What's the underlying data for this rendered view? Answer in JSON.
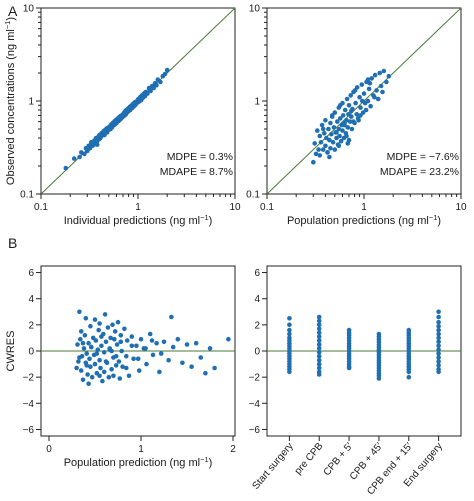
{
  "panel_labels": [
    "A",
    "B"
  ],
  "colors": {
    "points": "#1f6fb2",
    "identity_line": "#4a7a3a",
    "zero_line": "#4a7a3a",
    "axis": "#222222"
  },
  "chart_data": [
    {
      "id": "ipred",
      "type": "scatter",
      "scale": "log",
      "xlim": [
        0.1,
        10
      ],
      "ylim": [
        0.1,
        10
      ],
      "xticks": [
        "0.1",
        "1",
        "10"
      ],
      "yticks": [
        "0.1",
        "1",
        "10"
      ],
      "xlabel": "Individual predictions (ng ml",
      "ylabel": "Observed concentrations (ng ml",
      "unit_exp": "−1",
      "identity_line": true,
      "annotations": [
        "MDPE = 0.3%",
        "MDAPE = 8.7%"
      ],
      "points_x": [
        0.18,
        0.22,
        0.25,
        0.26,
        0.28,
        0.29,
        0.3,
        0.31,
        0.32,
        0.33,
        0.34,
        0.35,
        0.35,
        0.36,
        0.37,
        0.37,
        0.38,
        0.39,
        0.4,
        0.4,
        0.41,
        0.42,
        0.42,
        0.43,
        0.44,
        0.45,
        0.45,
        0.46,
        0.47,
        0.48,
        0.48,
        0.49,
        0.5,
        0.5,
        0.51,
        0.52,
        0.53,
        0.54,
        0.55,
        0.55,
        0.56,
        0.57,
        0.58,
        0.59,
        0.6,
        0.6,
        0.61,
        0.62,
        0.63,
        0.64,
        0.65,
        0.66,
        0.67,
        0.68,
        0.69,
        0.7,
        0.71,
        0.72,
        0.73,
        0.74,
        0.75,
        0.76,
        0.78,
        0.79,
        0.8,
        0.82,
        0.84,
        0.85,
        0.87,
        0.89,
        0.9,
        0.92,
        0.94,
        0.95,
        0.97,
        1.0,
        1.02,
        1.05,
        1.08,
        1.1,
        1.12,
        1.15,
        1.18,
        1.2,
        1.25,
        1.3,
        1.35,
        1.4,
        1.45,
        1.5,
        1.55,
        1.6,
        1.7,
        1.8,
        1.9,
        2.0,
        0.33,
        0.38,
        0.44,
        0.52,
        0.58,
        0.66,
        0.74,
        0.83,
        0.93,
        1.04,
        1.16,
        1.3
      ],
      "points_y": [
        0.19,
        0.24,
        0.25,
        0.28,
        0.27,
        0.31,
        0.29,
        0.33,
        0.31,
        0.35,
        0.33,
        0.37,
        0.34,
        0.38,
        0.36,
        0.4,
        0.37,
        0.41,
        0.39,
        0.43,
        0.4,
        0.45,
        0.42,
        0.44,
        0.47,
        0.43,
        0.48,
        0.45,
        0.5,
        0.46,
        0.51,
        0.48,
        0.52,
        0.49,
        0.53,
        0.5,
        0.56,
        0.52,
        0.58,
        0.54,
        0.55,
        0.6,
        0.56,
        0.62,
        0.58,
        0.63,
        0.6,
        0.65,
        0.61,
        0.67,
        0.63,
        0.69,
        0.65,
        0.7,
        0.67,
        0.72,
        0.69,
        0.75,
        0.7,
        0.78,
        0.72,
        0.8,
        0.76,
        0.83,
        0.78,
        0.86,
        0.82,
        0.89,
        0.84,
        0.93,
        0.87,
        0.96,
        0.91,
        0.98,
        0.95,
        1.04,
        0.98,
        1.1,
        1.02,
        1.15,
        1.08,
        1.2,
        1.13,
        1.25,
        1.2,
        1.35,
        1.28,
        1.45,
        1.38,
        1.55,
        1.48,
        1.7,
        1.6,
        1.85,
        1.95,
        2.15,
        0.36,
        0.34,
        0.47,
        0.5,
        0.61,
        0.64,
        0.77,
        0.8,
        0.9,
        1.07,
        1.12,
        1.38
      ]
    },
    {
      "id": "pred",
      "type": "scatter",
      "scale": "log",
      "xlim": [
        0.1,
        10
      ],
      "ylim": [
        0.1,
        10
      ],
      "xticks": [
        "0.1",
        "1",
        "10"
      ],
      "yticks": [
        "0.1",
        "1",
        "10"
      ],
      "xlabel": "Population predictions (ng ml",
      "unit_exp": "−1",
      "identity_line": true,
      "annotations": [
        "MDPE = −7.6%",
        "MDAPE = 23.2%"
      ],
      "points_x": [
        0.3,
        0.31,
        0.32,
        0.33,
        0.34,
        0.35,
        0.35,
        0.36,
        0.37,
        0.38,
        0.39,
        0.4,
        0.4,
        0.41,
        0.42,
        0.43,
        0.44,
        0.45,
        0.45,
        0.46,
        0.47,
        0.48,
        0.49,
        0.5,
        0.5,
        0.51,
        0.52,
        0.53,
        0.54,
        0.55,
        0.55,
        0.56,
        0.57,
        0.58,
        0.59,
        0.6,
        0.6,
        0.61,
        0.62,
        0.63,
        0.64,
        0.65,
        0.66,
        0.67,
        0.68,
        0.69,
        0.7,
        0.7,
        0.72,
        0.73,
        0.74,
        0.75,
        0.76,
        0.78,
        0.8,
        0.82,
        0.84,
        0.85,
        0.87,
        0.9,
        0.92,
        0.95,
        0.98,
        1.0,
        1.03,
        1.06,
        1.1,
        1.13,
        1.17,
        1.2,
        1.25,
        1.3,
        1.35,
        1.4,
        1.45,
        1.5,
        1.55,
        1.6,
        1.7,
        1.8,
        0.38,
        0.42,
        0.47,
        0.52,
        0.57,
        0.63,
        0.68,
        0.74,
        0.81,
        0.88,
        0.96,
        1.05,
        1.15,
        1.28,
        0.44,
        0.55,
        0.66,
        0.78,
        0.92,
        1.1
      ],
      "points_y": [
        0.22,
        0.35,
        0.27,
        0.48,
        0.3,
        0.26,
        0.42,
        0.36,
        0.55,
        0.3,
        0.45,
        0.33,
        0.62,
        0.4,
        0.28,
        0.5,
        0.38,
        0.31,
        0.58,
        0.44,
        0.68,
        0.36,
        0.52,
        0.3,
        0.75,
        0.46,
        0.4,
        0.6,
        0.34,
        0.5,
        0.85,
        0.42,
        0.65,
        0.37,
        0.55,
        0.48,
        0.95,
        0.7,
        0.4,
        0.58,
        0.8,
        0.45,
        0.62,
        1.05,
        0.52,
        0.72,
        0.38,
        0.9,
        0.6,
        1.15,
        0.68,
        0.5,
        0.82,
        1.25,
        0.58,
        0.95,
        0.72,
        1.4,
        0.65,
        1.1,
        0.85,
        1.5,
        0.75,
        1.2,
        0.95,
        1.6,
        1.0,
        1.35,
        0.88,
        1.75,
        1.15,
        1.9,
        1.3,
        1.05,
        2.0,
        1.45,
        1.25,
        2.1,
        1.6,
        1.85,
        0.5,
        0.28,
        0.7,
        0.46,
        0.9,
        0.55,
        0.35,
        0.78,
        1.3,
        0.62,
        1.0,
        0.8,
        1.55,
        1.1,
        0.25,
        0.33,
        0.42,
        0.6,
        0.7,
        1.7
      ]
    },
    {
      "id": "cwres_pred",
      "type": "scatter",
      "xlim": [
        0,
        2
      ],
      "ylim": [
        -6.5,
        6.5
      ],
      "xticks": [
        "0",
        "1",
        "2"
      ],
      "yticks": [
        "−6",
        "−4",
        "−2",
        "0",
        "2",
        "4",
        "6"
      ],
      "xlabel": "Population prediction (ng ml",
      "ylabel": "CWRES",
      "unit_exp": "−1",
      "zero_line": true,
      "points_x": [
        0.3,
        0.31,
        0.32,
        0.33,
        0.34,
        0.35,
        0.35,
        0.36,
        0.37,
        0.38,
        0.39,
        0.4,
        0.4,
        0.41,
        0.42,
        0.43,
        0.44,
        0.45,
        0.45,
        0.46,
        0.47,
        0.48,
        0.49,
        0.5,
        0.5,
        0.51,
        0.52,
        0.53,
        0.54,
        0.55,
        0.55,
        0.56,
        0.57,
        0.58,
        0.59,
        0.6,
        0.6,
        0.61,
        0.62,
        0.63,
        0.64,
        0.65,
        0.66,
        0.67,
        0.68,
        0.69,
        0.7,
        0.7,
        0.71,
        0.72,
        0.73,
        0.74,
        0.75,
        0.76,
        0.77,
        0.78,
        0.79,
        0.8,
        0.82,
        0.84,
        0.85,
        0.87,
        0.9,
        0.92,
        0.95,
        0.98,
        1.0,
        1.03,
        1.06,
        1.1,
        1.13,
        1.17,
        1.2,
        1.25,
        1.3,
        1.35,
        1.4,
        1.45,
        1.5,
        1.55,
        1.6,
        1.65,
        1.7,
        1.75,
        1.8,
        1.95,
        0.33,
        0.37,
        0.41,
        0.46,
        0.52,
        0.57,
        0.62,
        0.68,
        0.73,
        0.78,
        0.84,
        0.9,
        0.97,
        1.05,
        1.12,
        1.22,
        1.33,
        0.43,
        0.55,
        0.66
      ],
      "points_y": [
        -1.3,
        0.5,
        -0.8,
        3.0,
        0.9,
        -1.5,
        1.5,
        -0.4,
        -2.2,
        0.2,
        1.2,
        -0.9,
        2.5,
        -0.2,
        -1.8,
        0.6,
        -0.6,
        1.9,
        -1.2,
        0.3,
        -2.0,
        1.0,
        -0.3,
        2.4,
        -1.0,
        0.8,
        -1.7,
        0.1,
        1.6,
        -0.7,
        2.1,
        -1.3,
        0.4,
        -2.3,
        1.3,
        -0.1,
        -1.6,
        2.8,
        0.7,
        -0.9,
        1.8,
        -2.0,
        0.2,
        1.0,
        -1.4,
        2.0,
        -0.5,
        -1.9,
        0.9,
        1.5,
        -1.1,
        0.5,
        2.2,
        -0.8,
        -2.1,
        1.2,
        0.0,
        -1.2,
        1.7,
        -0.4,
        0.8,
        -1.9,
        1.1,
        -0.6,
        0.4,
        -1.5,
        0.9,
        0.2,
        -1.0,
        1.3,
        -0.3,
        0.6,
        -1.6,
        0.7,
        -0.7,
        0.3,
        0.9,
        -0.9,
        0.5,
        -1.2,
        0.6,
        -0.5,
        -1.7,
        0.2,
        -1.3,
        0.9,
        -0.5,
        0.6,
        -1.1,
        0.3,
        -0.2,
        1.1,
        -0.8,
        0.0,
        -0.4,
        0.7,
        -1.3,
        0.4,
        -0.6,
        0.2,
        0.8,
        -0.2,
        2.6,
        -2.5,
        -1.9,
        0.1
      ],
      "sizes_note": ""
    },
    {
      "id": "cwres_time",
      "type": "scatter",
      "ylim": [
        -6.5,
        6.5
      ],
      "yticks": [
        "−6",
        "−4",
        "−2",
        "0",
        "2",
        "4",
        "6"
      ],
      "categories": [
        "Start surgery",
        "pre CPB",
        "CPB + 5′",
        "CPB + 45′",
        "CPB end + 15′",
        "End surgery"
      ],
      "zero_line": true,
      "series": [
        {
          "values": [
            2.5,
            2.0,
            1.6,
            1.3,
            1.0,
            0.8,
            0.6,
            0.4,
            0.2,
            0.0,
            -0.2,
            -0.4,
            -0.6,
            -0.8,
            -1.0,
            -1.2,
            -1.4,
            -1.6
          ]
        },
        {
          "values": [
            2.6,
            2.3,
            2.0,
            1.7,
            1.4,
            1.1,
            0.8,
            0.5,
            0.2,
            -0.1,
            -0.4,
            -0.7,
            -1.0,
            -1.3,
            -1.6,
            -1.8
          ]
        },
        {
          "values": [
            1.6,
            1.4,
            1.2,
            1.0,
            0.8,
            0.6,
            0.4,
            0.2,
            0.0,
            -0.2,
            -0.4,
            -0.6,
            -0.8,
            -1.0,
            -1.2,
            -1.3
          ]
        },
        {
          "values": [
            1.3,
            1.1,
            0.9,
            0.7,
            0.5,
            0.3,
            0.1,
            -0.1,
            -0.3,
            -0.5,
            -0.7,
            -0.9,
            -1.1,
            -1.3,
            -1.5,
            -1.7,
            -1.9,
            -2.1
          ]
        },
        {
          "values": [
            1.6,
            1.4,
            1.2,
            1.0,
            0.8,
            0.6,
            0.4,
            0.2,
            0.0,
            -0.2,
            -0.4,
            -0.6,
            -0.8,
            -1.0,
            -1.2,
            -1.4,
            -1.6,
            -2.0
          ]
        },
        {
          "values": [
            3.0,
            2.6,
            2.2,
            1.9,
            1.6,
            1.3,
            1.0,
            0.7,
            0.4,
            0.1,
            -0.2,
            -0.5,
            -0.8,
            -1.1,
            -1.4,
            -1.6
          ]
        }
      ]
    }
  ]
}
